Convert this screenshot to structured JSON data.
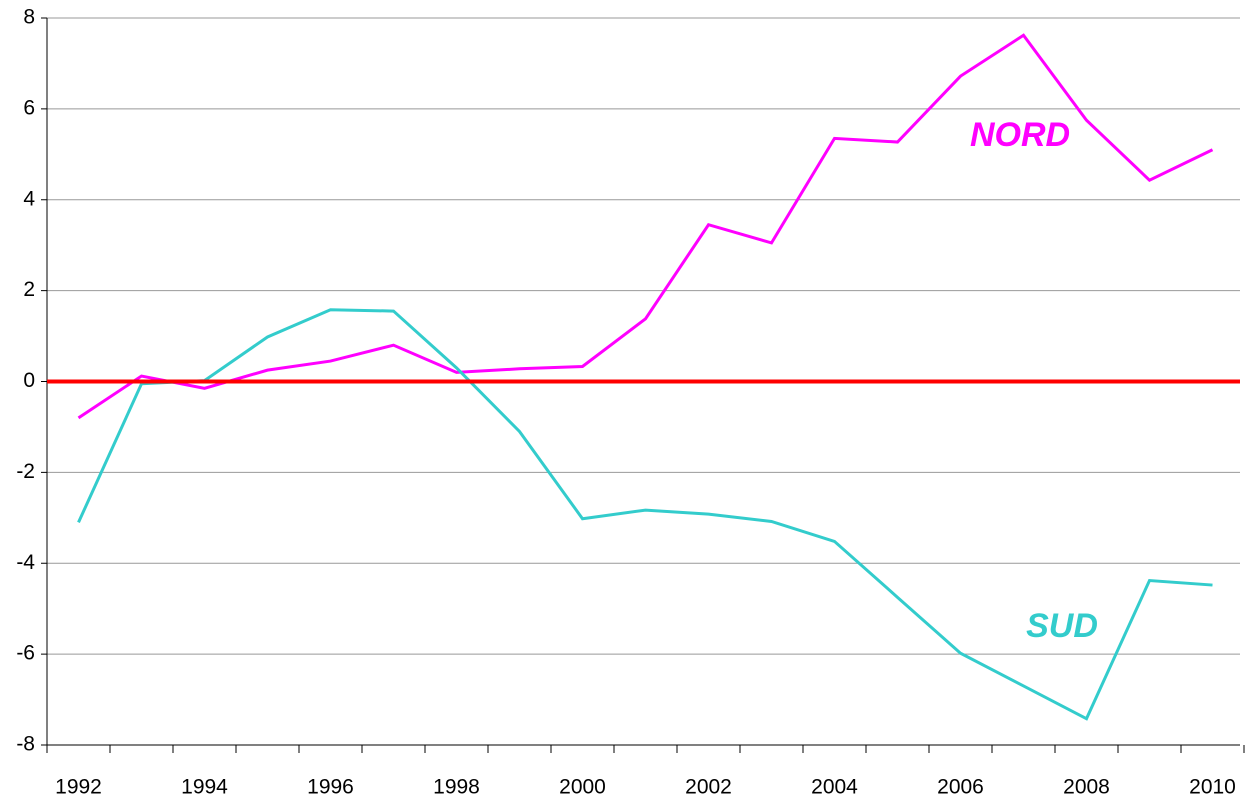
{
  "chart_data": {
    "type": "line",
    "categories": [
      "1992",
      null,
      "1994",
      null,
      "1996",
      null,
      "1998",
      null,
      "2000",
      null,
      "2002",
      null,
      "2004",
      null,
      "2006",
      null,
      "2008",
      null,
      "2010"
    ],
    "series": [
      {
        "name": "NORD",
        "color": "#ff00ff",
        "values": [
          -0.8,
          0.12,
          -0.15,
          0.25,
          0.45,
          0.8,
          0.2,
          0.28,
          0.33,
          1.38,
          3.45,
          3.05,
          5.35,
          5.27,
          6.72,
          7.62,
          5.75,
          4.43,
          5.1
        ]
      },
      {
        "name": "SUD",
        "color": "#33cccc",
        "values": [
          -3.1,
          -0.05,
          0.02,
          0.98,
          1.58,
          1.55,
          0.3,
          -1.1,
          -3.02,
          -2.83,
          -2.92,
          -3.08,
          -3.52,
          -4.75,
          -5.98,
          -6.7,
          -7.42,
          -4.38,
          -4.48
        ]
      }
    ],
    "ylim": [
      -8,
      8
    ],
    "yticks": [
      -8,
      -6,
      -4,
      -2,
      0,
      2,
      4,
      6,
      8
    ],
    "grid": true,
    "reference_line": {
      "value": 0,
      "color": "#ff0000"
    }
  }
}
